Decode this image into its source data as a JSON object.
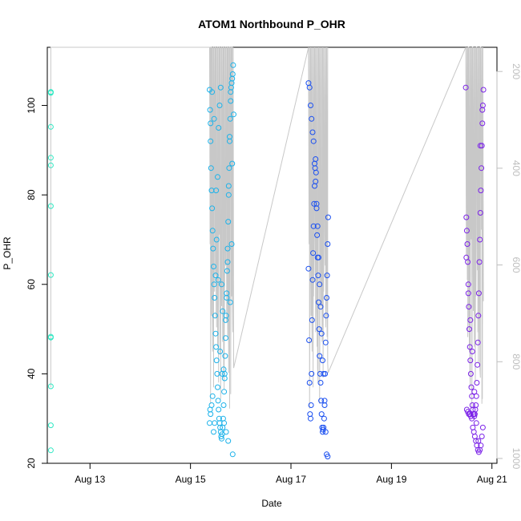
{
  "chart_data": {
    "type": "scatter",
    "title": "ATOM1 Northbound P_OHR",
    "xlabel": "Date",
    "ylabel": "P_OHR",
    "x_ticks": [
      {
        "x": 13,
        "label": "Aug 13"
      },
      {
        "x": 15,
        "label": "Aug 15"
      },
      {
        "x": 17,
        "label": "Aug 17"
      },
      {
        "x": 19,
        "label": "Aug 19"
      },
      {
        "x": 21,
        "label": "Aug 21"
      }
    ],
    "y_ticks": [
      20,
      40,
      60,
      80,
      100
    ],
    "y2_ticks": [
      200,
      400,
      600,
      800,
      1000
    ],
    "xlim": [
      12.15,
      21.1
    ],
    "ylim": [
      20,
      113
    ],
    "y2lim": [
      1010,
      150
    ],
    "grid": false,
    "series": [
      {
        "color": "#2ee8c3",
        "x": [
          12.22,
          12.22,
          12.22,
          12.22,
          12.22,
          12.22,
          12.22,
          12.22,
          12.22,
          12.22,
          12.22,
          12.22,
          12.22
        ],
        "y": [
          103,
          103,
          95.2,
          88.3,
          86.6,
          77.5,
          62.1,
          48.3,
          48.1,
          37.2,
          28.5,
          22.9,
          102.8
        ]
      },
      {
        "color": "#1cb2ea",
        "x": [
          15.38,
          15.39,
          15.4,
          15.4,
          15.41,
          15.42,
          15.43,
          15.44,
          15.45,
          15.46,
          15.47,
          15.48,
          15.49,
          15.5,
          15.51,
          15.52,
          15.53,
          15.54,
          15.55,
          15.56,
          15.57,
          15.58,
          15.59,
          15.6,
          15.61,
          15.62,
          15.63,
          15.64,
          15.65,
          15.66,
          15.67,
          15.68,
          15.69,
          15.7,
          15.71,
          15.72,
          15.73,
          15.74,
          15.75,
          15.76,
          15.77,
          15.78,
          15.79,
          15.8,
          15.81,
          15.82,
          15.83,
          15.84,
          15.85,
          15.86,
          15.38,
          15.4,
          15.42,
          15.44,
          15.46,
          15.48,
          15.5,
          15.52,
          15.54,
          15.56,
          15.58,
          15.6,
          15.62,
          15.64,
          15.66,
          15.68,
          15.7,
          15.72,
          15.74,
          15.76,
          15.78,
          15.8,
          15.82,
          15.84,
          15.39,
          15.43,
          15.47,
          15.51,
          15.55,
          15.59,
          15.63,
          15.67,
          15.71,
          15.75,
          15.79,
          15.83
        ],
        "y": [
          103.5,
          99,
          96,
          92,
          86,
          81,
          77,
          72,
          68,
          64,
          60,
          57,
          53,
          49,
          46,
          43,
          40,
          37,
          34,
          32,
          30,
          29,
          28,
          27,
          26,
          25.5,
          26.5,
          28,
          30,
          33,
          36,
          40,
          44,
          48,
          53,
          58,
          63,
          68,
          74,
          80,
          86,
          92,
          97,
          101,
          104,
          105,
          106,
          107,
          109,
          98,
          29,
          31,
          33,
          35,
          27,
          29,
          62,
          70,
          84,
          95,
          100,
          104,
          60,
          54,
          41,
          39,
          52,
          57,
          65,
          82,
          93,
          103,
          69,
          22,
          32,
          103,
          97,
          81,
          61,
          45,
          40,
          29,
          27,
          25,
          56,
          87
        ]
      },
      {
        "color": "#1a4ff0",
        "x": [
          17.35,
          17.36,
          17.37,
          17.38,
          17.39,
          17.4,
          17.41,
          17.42,
          17.43,
          17.44,
          17.45,
          17.46,
          17.47,
          17.48,
          17.49,
          17.5,
          17.51,
          17.52,
          17.53,
          17.54,
          17.55,
          17.56,
          17.57,
          17.58,
          17.59,
          17.6,
          17.61,
          17.62,
          17.63,
          17.64,
          17.65,
          17.66,
          17.67,
          17.68,
          17.69,
          17.7,
          17.71,
          17.72,
          17.73,
          17.74,
          17.35,
          17.37,
          17.39,
          17.41,
          17.43,
          17.45,
          17.47,
          17.49,
          17.51,
          17.53,
          17.55,
          17.57,
          17.59,
          17.61,
          17.63,
          17.65,
          17.67,
          17.69,
          17.71,
          17.73
        ],
        "y": [
          63.5,
          47.5,
          38,
          31,
          30,
          33,
          40,
          52,
          61,
          67,
          73,
          78,
          82,
          86,
          88,
          85,
          78,
          71,
          66,
          62,
          56,
          50,
          44,
          40,
          38,
          34,
          31,
          28,
          27,
          27.5,
          28,
          30,
          34,
          40,
          47,
          53,
          57,
          62,
          69,
          75,
          105,
          104,
          100,
          97,
          94,
          92,
          87,
          83,
          77,
          73,
          66,
          60,
          55,
          49,
          43,
          40,
          33,
          27,
          22,
          21.5
        ]
      },
      {
        "color": "#7b22e8",
        "x": [
          20.48,
          20.49,
          20.5,
          20.51,
          20.52,
          20.53,
          20.54,
          20.55,
          20.56,
          20.57,
          20.58,
          20.59,
          20.6,
          20.61,
          20.62,
          20.63,
          20.64,
          20.65,
          20.66,
          20.67,
          20.68,
          20.69,
          20.7,
          20.71,
          20.72,
          20.73,
          20.74,
          20.75,
          20.76,
          20.77,
          20.78,
          20.79,
          20.8,
          20.81,
          20.82,
          20.83,
          20.5,
          20.52,
          20.54,
          20.56,
          20.58,
          20.6,
          20.62,
          20.64,
          20.66,
          20.68,
          20.7,
          20.72,
          20.74,
          20.76,
          20.78,
          20.8,
          20.82,
          20.49,
          20.53,
          20.57,
          20.61,
          20.65,
          20.69,
          20.73,
          20.77,
          20.81
        ],
        "y": [
          104,
          75,
          72,
          69,
          65,
          60,
          55,
          50,
          46,
          43,
          40,
          37,
          35,
          33,
          32,
          31,
          31,
          30.5,
          31,
          32,
          33,
          35,
          38,
          42,
          47,
          53,
          58,
          65,
          70,
          76,
          81,
          86,
          91,
          96,
          100,
          103.5,
          32,
          31.5,
          31,
          31,
          30.5,
          30,
          28,
          27,
          26,
          25,
          24,
          23,
          22.5,
          23,
          24,
          26,
          28,
          66,
          58,
          52,
          45,
          36,
          29,
          25,
          91,
          99
        ]
      }
    ]
  }
}
